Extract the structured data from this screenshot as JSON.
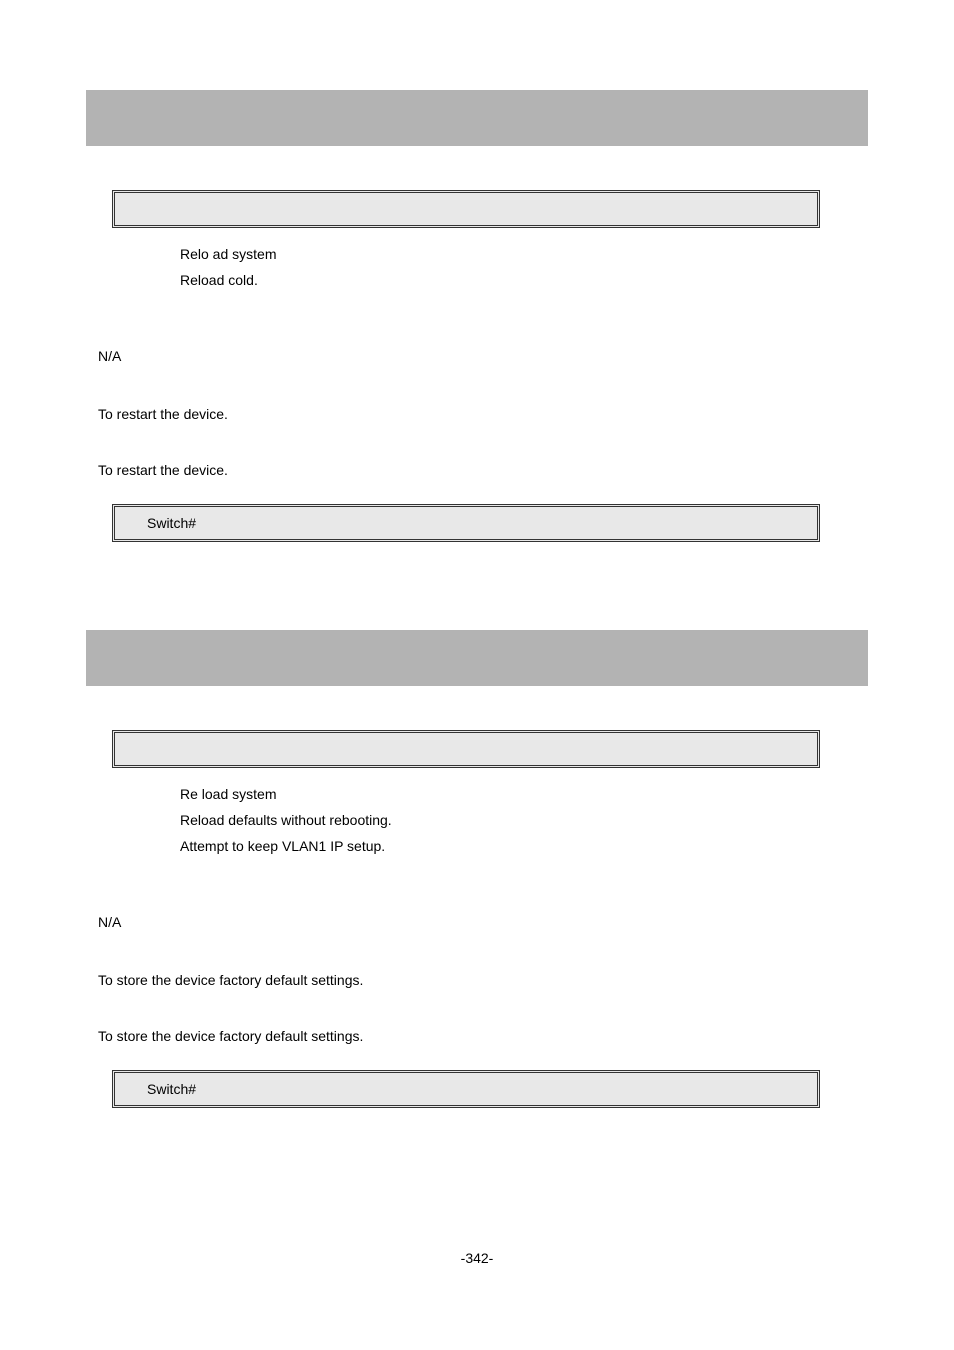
{
  "section1": {
    "banner_bg": "#b3b3b3",
    "syntax_box_bg": "#e8e8e8",
    "line1": "Relo ad system",
    "line2": "Reload cold.",
    "na": "N/A",
    "desc1": "To restart the device.",
    "desc2": "To restart the device.",
    "example_prompt": "Switch#"
  },
  "section2": {
    "line1": "Re load system",
    "line2": " Reload defaults without rebooting.",
    "line3": "Attempt to keep VLAN1 IP setup.",
    "na": "N/A",
    "desc1": "To store the device factory default settings.",
    "desc2": "To store the device factory default settings.",
    "example_prompt": "Switch#"
  },
  "page_number": "-342-"
}
